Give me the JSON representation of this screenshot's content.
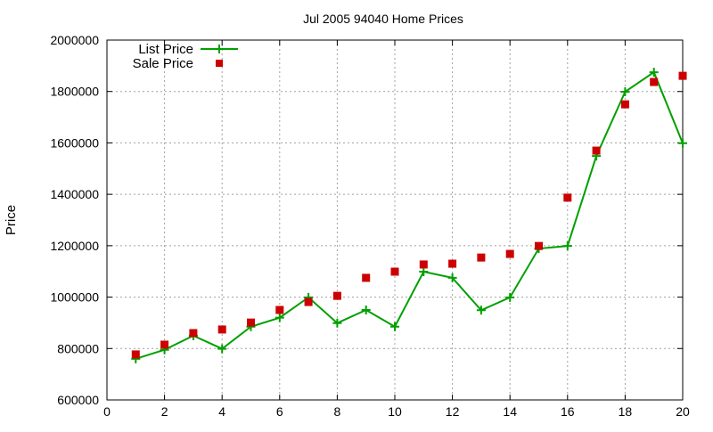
{
  "chart_data": {
    "type": "line",
    "title": "Jul 2005 94040 Home Prices",
    "xlabel": "",
    "ylabel": "Price",
    "xlim": [
      0,
      20
    ],
    "ylim": [
      600000,
      2000000
    ],
    "xticks": [
      "0",
      "2",
      "4",
      "6",
      "8",
      "10",
      "12",
      "14",
      "16",
      "18",
      "20"
    ],
    "yticks": [
      "600000",
      "800000",
      "1000000",
      "1200000",
      "1400000",
      "1600000",
      "1800000",
      "2000000"
    ],
    "grid": true,
    "legend_position": "top-left",
    "x": [
      1,
      2,
      3,
      4,
      5,
      6,
      7,
      8,
      9,
      10,
      11,
      12,
      13,
      14,
      15,
      16,
      17,
      18,
      19,
      20
    ],
    "series": [
      {
        "name": "List Price",
        "style": "linespoints",
        "color": "#00a000",
        "values": [
          760000,
          795000,
          850000,
          799000,
          885000,
          920000,
          999000,
          899000,
          950000,
          885000,
          1099000,
          1075000,
          949000,
          999000,
          1189000,
          1199000,
          1549000,
          1799000,
          1875000,
          1599000
        ]
      },
      {
        "name": "Sale Price",
        "style": "points",
        "color": "#cc0000",
        "values": [
          777000,
          815000,
          860000,
          874000,
          901000,
          950000,
          981000,
          1005000,
          1075000,
          1099000,
          1127000,
          1130000,
          1154000,
          1168000,
          1199000,
          1387000,
          1570000,
          1750000,
          1837000,
          1861000
        ]
      }
    ]
  }
}
